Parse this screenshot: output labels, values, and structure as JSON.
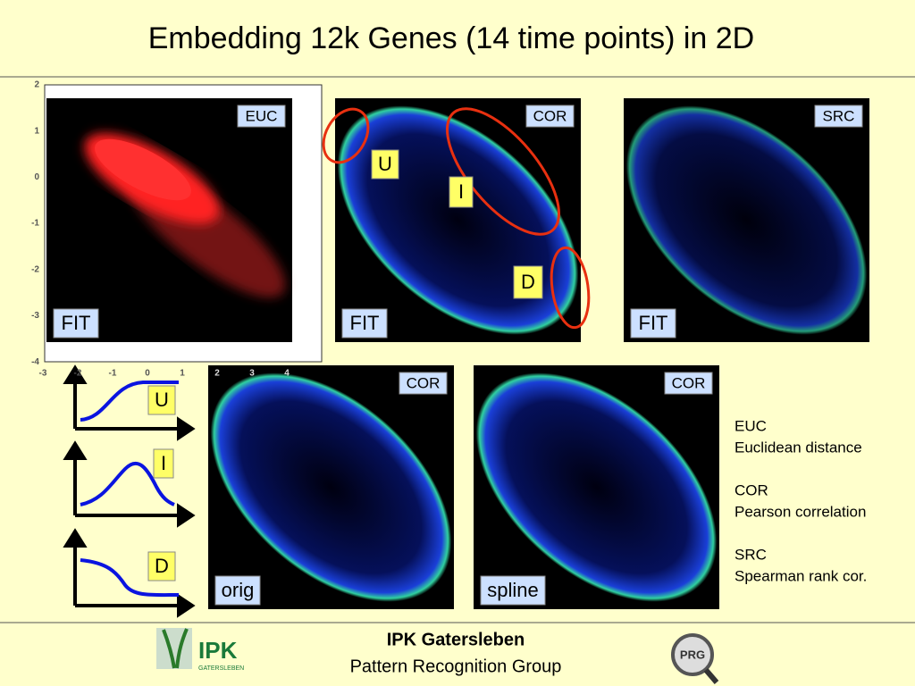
{
  "title": "Embedding 12k Genes (14 time points) in 2D",
  "scatter_axis": {
    "xticks": [
      -3,
      -2,
      -1,
      0,
      1,
      2,
      3,
      4
    ],
    "yticks": [
      2,
      1,
      0,
      -1,
      -2,
      -3,
      -4
    ]
  },
  "panels": [
    {
      "tag": "EUC",
      "label": "FIT"
    },
    {
      "tag": "COR",
      "label": "FIT"
    },
    {
      "tag": "SRC",
      "label": "FIT"
    },
    {
      "tag": "COR",
      "label": "orig"
    },
    {
      "tag": "COR",
      "label": "spline"
    }
  ],
  "annotations": [
    "U",
    "I",
    "D"
  ],
  "profiles": [
    "U",
    "I",
    "D"
  ],
  "legend": [
    {
      "abbr": "EUC",
      "desc": "Euclidean distance"
    },
    {
      "abbr": "COR",
      "desc": "Pearson correlation"
    },
    {
      "abbr": "SRC",
      "desc": "Spearman rank cor."
    }
  ],
  "footer": {
    "org": "IPK Gatersleben",
    "group": "Pattern Recognition Group",
    "logo": "IPK",
    "logo_sub": "GATERSLEBEN",
    "prg": "PRG"
  }
}
